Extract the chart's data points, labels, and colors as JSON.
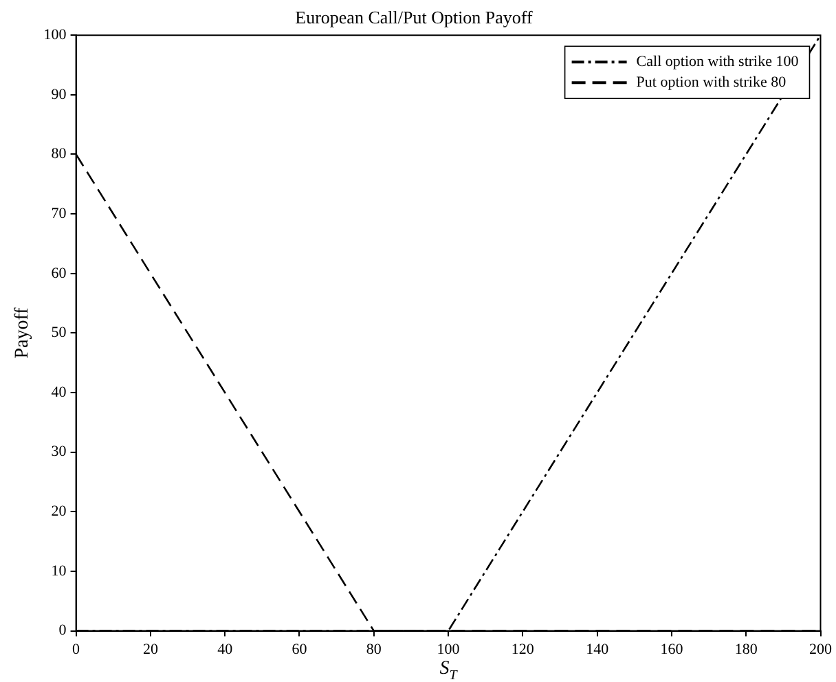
{
  "chart_data": {
    "type": "line",
    "title": "European Call/Put Option Payoff",
    "xlabel": "S$_{T}$",
    "ylabel": "Payoff",
    "xlim": [
      0,
      200
    ],
    "xticks": [
      0,
      20,
      40,
      60,
      80,
      100,
      120,
      140,
      160,
      180,
      200
    ],
    "ylim": [
      0,
      100
    ],
    "yticks": [
      0,
      10,
      20,
      30,
      40,
      50,
      60,
      70,
      80,
      90,
      100
    ],
    "grid": false,
    "legend": "top right",
    "marker": "none",
    "series": [
      {
        "name": "Call option with strike 100",
        "color": "#000000",
        "line_style": "dashdot",
        "x": [
          0,
          100,
          200
        ],
        "values": [
          0,
          0,
          100
        ]
      },
      {
        "name": "Put option with strike 80",
        "color": "#000000",
        "line_style": "dashed",
        "x": [
          0,
          80,
          200
        ],
        "values": [
          80,
          0,
          0
        ]
      }
    ]
  }
}
